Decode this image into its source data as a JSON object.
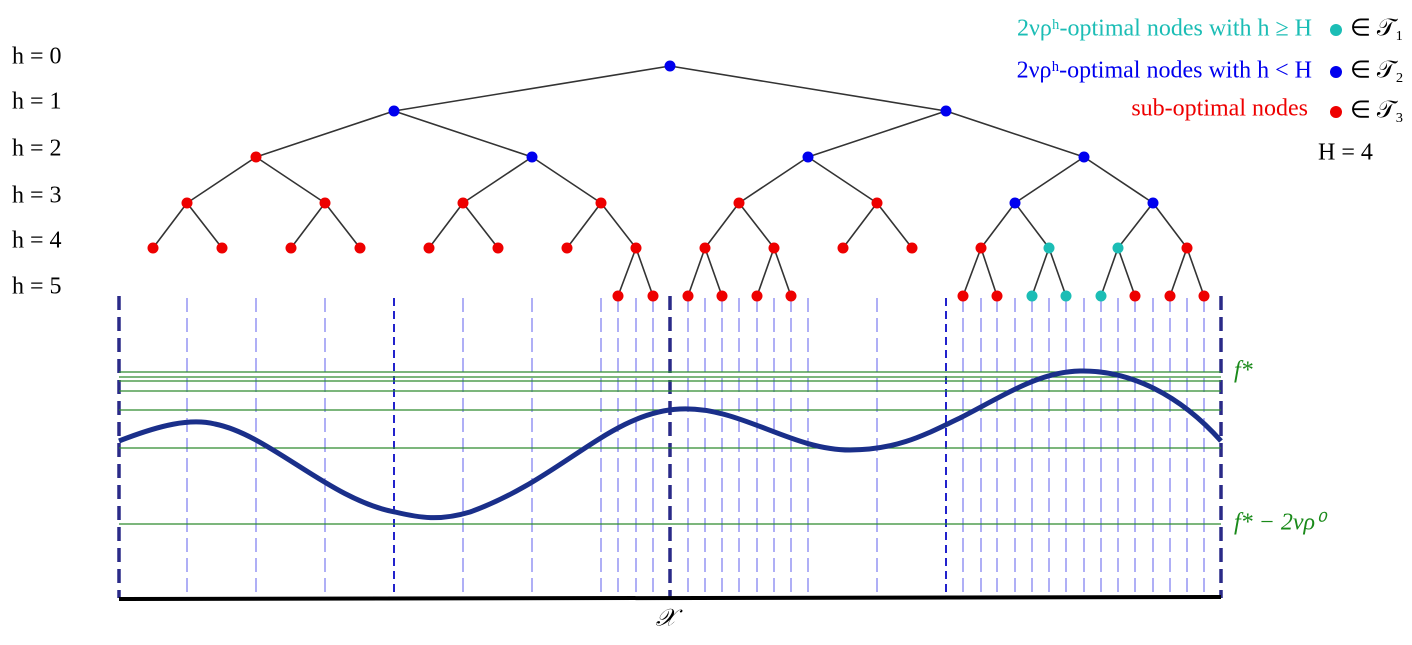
{
  "levels": [
    "h = 0",
    "h = 1",
    "h = 2",
    "h = 3",
    "h = 4",
    "h = 5"
  ],
  "legend": [
    {
      "label": "2νρʰ-optimal nodes with h ≥ H",
      "set": "∈ 𝒯₁"
    },
    {
      "label": "2νρʰ-optimal nodes with h < H",
      "set": "∈ 𝒯₂"
    },
    {
      "label": "sub-optimal nodes",
      "set": "∈ 𝒯₃"
    }
  ],
  "H_label": "H = 4",
  "curve_labels": {
    "top": "f*",
    "bottom": "f* − 2νρ⁰"
  },
  "axis_label": "𝒳"
}
